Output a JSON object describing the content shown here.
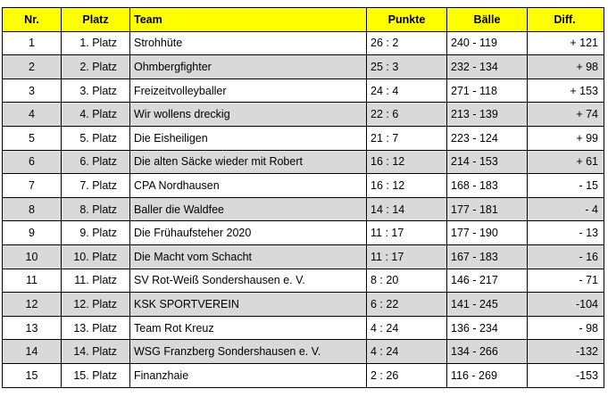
{
  "table": {
    "headers": [
      "Nr.",
      "Platz",
      "Team",
      "Punkte",
      "Bälle",
      "Diff."
    ],
    "rows": [
      {
        "nr": "1",
        "platz": "1. Platz",
        "team": "Strohhüte",
        "punkte": "26 : 2",
        "baelle": "240 - 119",
        "diff": "+ 121"
      },
      {
        "nr": "2",
        "platz": "2. Platz",
        "team": "Ohmbergfighter",
        "punkte": "25 : 3",
        "baelle": "232 - 134",
        "diff": "+ 98"
      },
      {
        "nr": "3",
        "platz": "3. Platz",
        "team": "Freizeitvolleyballer",
        "punkte": "24 : 4",
        "baelle": "271 - 118",
        "diff": "+ 153"
      },
      {
        "nr": "4",
        "platz": "4. Platz",
        "team": "Wir wollens dreckig",
        "punkte": "22 : 6",
        "baelle": "213 - 139",
        "diff": "+ 74"
      },
      {
        "nr": "5",
        "platz": "5. Platz",
        "team": "Die Eisheiligen",
        "punkte": "21 : 7",
        "baelle": "223 - 124",
        "diff": "+ 99"
      },
      {
        "nr": "6",
        "platz": "6. Platz",
        "team": "Die alten Säcke wieder mit Robert",
        "punkte": "16 : 12",
        "baelle": "214 - 153",
        "diff": "+ 61"
      },
      {
        "nr": "7",
        "platz": "7. Platz",
        "team": "CPA Nordhausen",
        "punkte": "16 : 12",
        "baelle": "168 - 183",
        "diff": "- 15"
      },
      {
        "nr": "8",
        "platz": "8. Platz",
        "team": "Baller die Waldfee",
        "punkte": "14 : 14",
        "baelle": "177 - 181",
        "diff": "- 4"
      },
      {
        "nr": "9",
        "platz": "9. Platz",
        "team": "Die Frühaufsteher 2020",
        "punkte": "11 : 17",
        "baelle": "177 - 190",
        "diff": "- 13"
      },
      {
        "nr": "10",
        "platz": "10. Platz",
        "team": "Die Macht vom Schacht",
        "punkte": "11 : 17",
        "baelle": "167 - 183",
        "diff": "- 16"
      },
      {
        "nr": "11",
        "platz": "11. Platz",
        "team": "SV Rot-Weiß Sondershausen e. V.",
        "punkte": "8 : 20",
        "baelle": "146 - 217",
        "diff": "- 71"
      },
      {
        "nr": "12",
        "platz": "12. Platz",
        "team": "KSK SPORTVEREIN",
        "punkte": "6 : 22",
        "baelle": "141 - 245",
        "diff": "-104"
      },
      {
        "nr": "13",
        "platz": "13. Platz",
        "team": "Team Rot Kreuz",
        "punkte": "4 : 24",
        "baelle": "136 - 234",
        "diff": "- 98"
      },
      {
        "nr": "14",
        "platz": "14. Platz",
        "team": "WSG Franzberg Sondershausen e. V.",
        "punkte": "4 : 24",
        "baelle": "134 - 266",
        "diff": "-132"
      },
      {
        "nr": "15",
        "platz": "15. Platz",
        "team": "Finanzhaie",
        "punkte": "2 : 26",
        "baelle": "116 - 269",
        "diff": "-153"
      }
    ]
  },
  "colors": {
    "header_bg": "#ffff00",
    "stripe_bg": "#d9d9d9",
    "row_bg": "#ffffff",
    "border": "#000000"
  }
}
